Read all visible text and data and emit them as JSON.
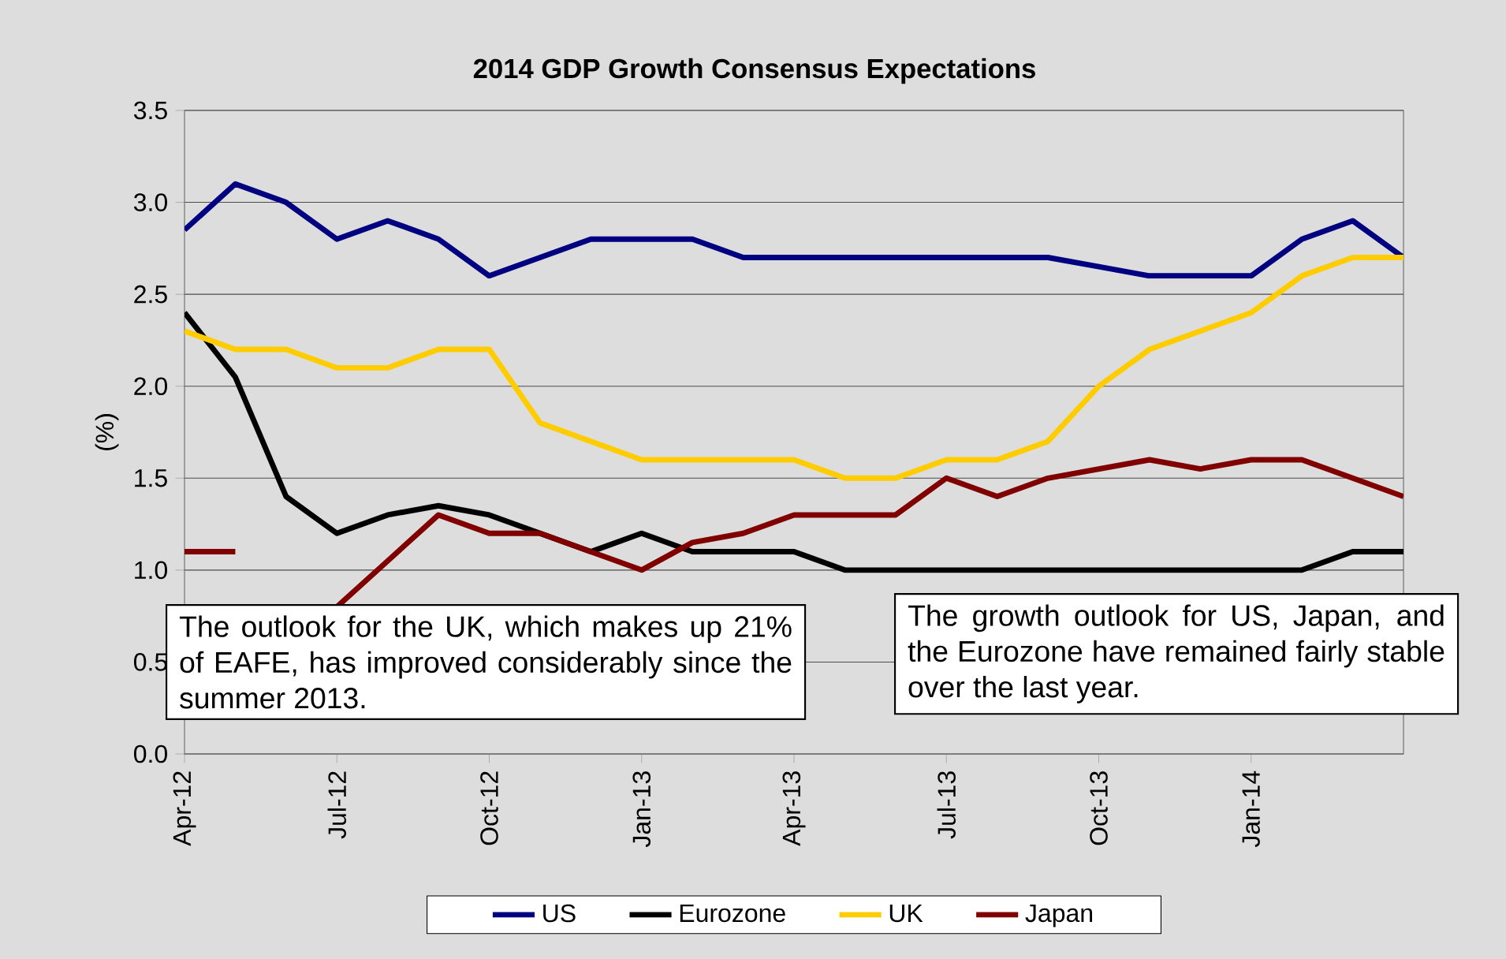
{
  "chart_data": {
    "type": "line",
    "title": "2014 GDP Growth Consensus Expectations",
    "ylabel": "(%)",
    "categories": [
      "Apr-12",
      null,
      null,
      "Jul-12",
      null,
      null,
      "Oct-12",
      null,
      null,
      "Jan-13",
      null,
      null,
      "Apr-13",
      null,
      null,
      "Jul-13",
      null,
      null,
      "Oct-13",
      null,
      null,
      "Jan-14",
      null,
      null,
      null
    ],
    "series": [
      {
        "name": "US",
        "color": "#000080",
        "values": [
          2.85,
          3.1,
          3.0,
          2.8,
          2.9,
          2.8,
          2.6,
          2.7,
          2.8,
          2.8,
          2.8,
          2.7,
          2.7,
          2.7,
          2.7,
          2.7,
          2.7,
          2.7,
          2.65,
          2.6,
          2.6,
          2.6,
          2.8,
          2.9,
          2.7
        ]
      },
      {
        "name": "Eurozone",
        "color": "#000000",
        "values": [
          2.4,
          2.05,
          1.4,
          1.2,
          1.3,
          1.35,
          1.3,
          1.2,
          1.1,
          1.2,
          1.1,
          1.1,
          1.1,
          1.0,
          1.0,
          1.0,
          1.0,
          1.0,
          1.0,
          1.0,
          1.0,
          1.0,
          1.0,
          1.1,
          1.1
        ]
      },
      {
        "name": "UK",
        "color": "#ffcc00",
        "values": [
          2.3,
          2.2,
          2.2,
          2.1,
          2.1,
          2.2,
          2.2,
          1.8,
          1.7,
          1.6,
          1.6,
          1.6,
          1.6,
          1.5,
          1.5,
          1.6,
          1.6,
          1.7,
          2.0,
          2.2,
          2.3,
          2.4,
          2.6,
          2.7,
          2.7
        ]
      },
      {
        "name": "Japan",
        "color": "#800000",
        "values": [
          1.1,
          1.1,
          null,
          0.8,
          1.05,
          1.3,
          1.2,
          1.2,
          1.1,
          1.0,
          1.15,
          1.2,
          1.3,
          1.3,
          1.3,
          1.5,
          1.4,
          1.5,
          1.55,
          1.6,
          1.55,
          1.6,
          1.6,
          1.5,
          1.4
        ]
      }
    ],
    "ylim": [
      0,
      3.5
    ],
    "yticks": [
      {
        "value": 0,
        "label": "0.0"
      },
      {
        "value": 0.5,
        "label": "0.5"
      },
      {
        "value": 1,
        "label": "1.0"
      },
      {
        "value": 1.5,
        "label": "1.5"
      },
      {
        "value": 2,
        "label": "2.0"
      },
      {
        "value": 2.5,
        "label": "2.5"
      },
      {
        "value": 3,
        "label": "3.0"
      },
      {
        "value": 3.5,
        "label": "3.5"
      }
    ],
    "grid": "y",
    "legend": "bottom",
    "marker": "none",
    "line_style": "solid",
    "annotations": [
      "The outlook for the UK, which makes up 21% of EAFE, has improved considerably since the summer 2013.",
      "The growth outlook for US, Japan, and the Eurozone have remained fairly stable over the last year."
    ]
  }
}
